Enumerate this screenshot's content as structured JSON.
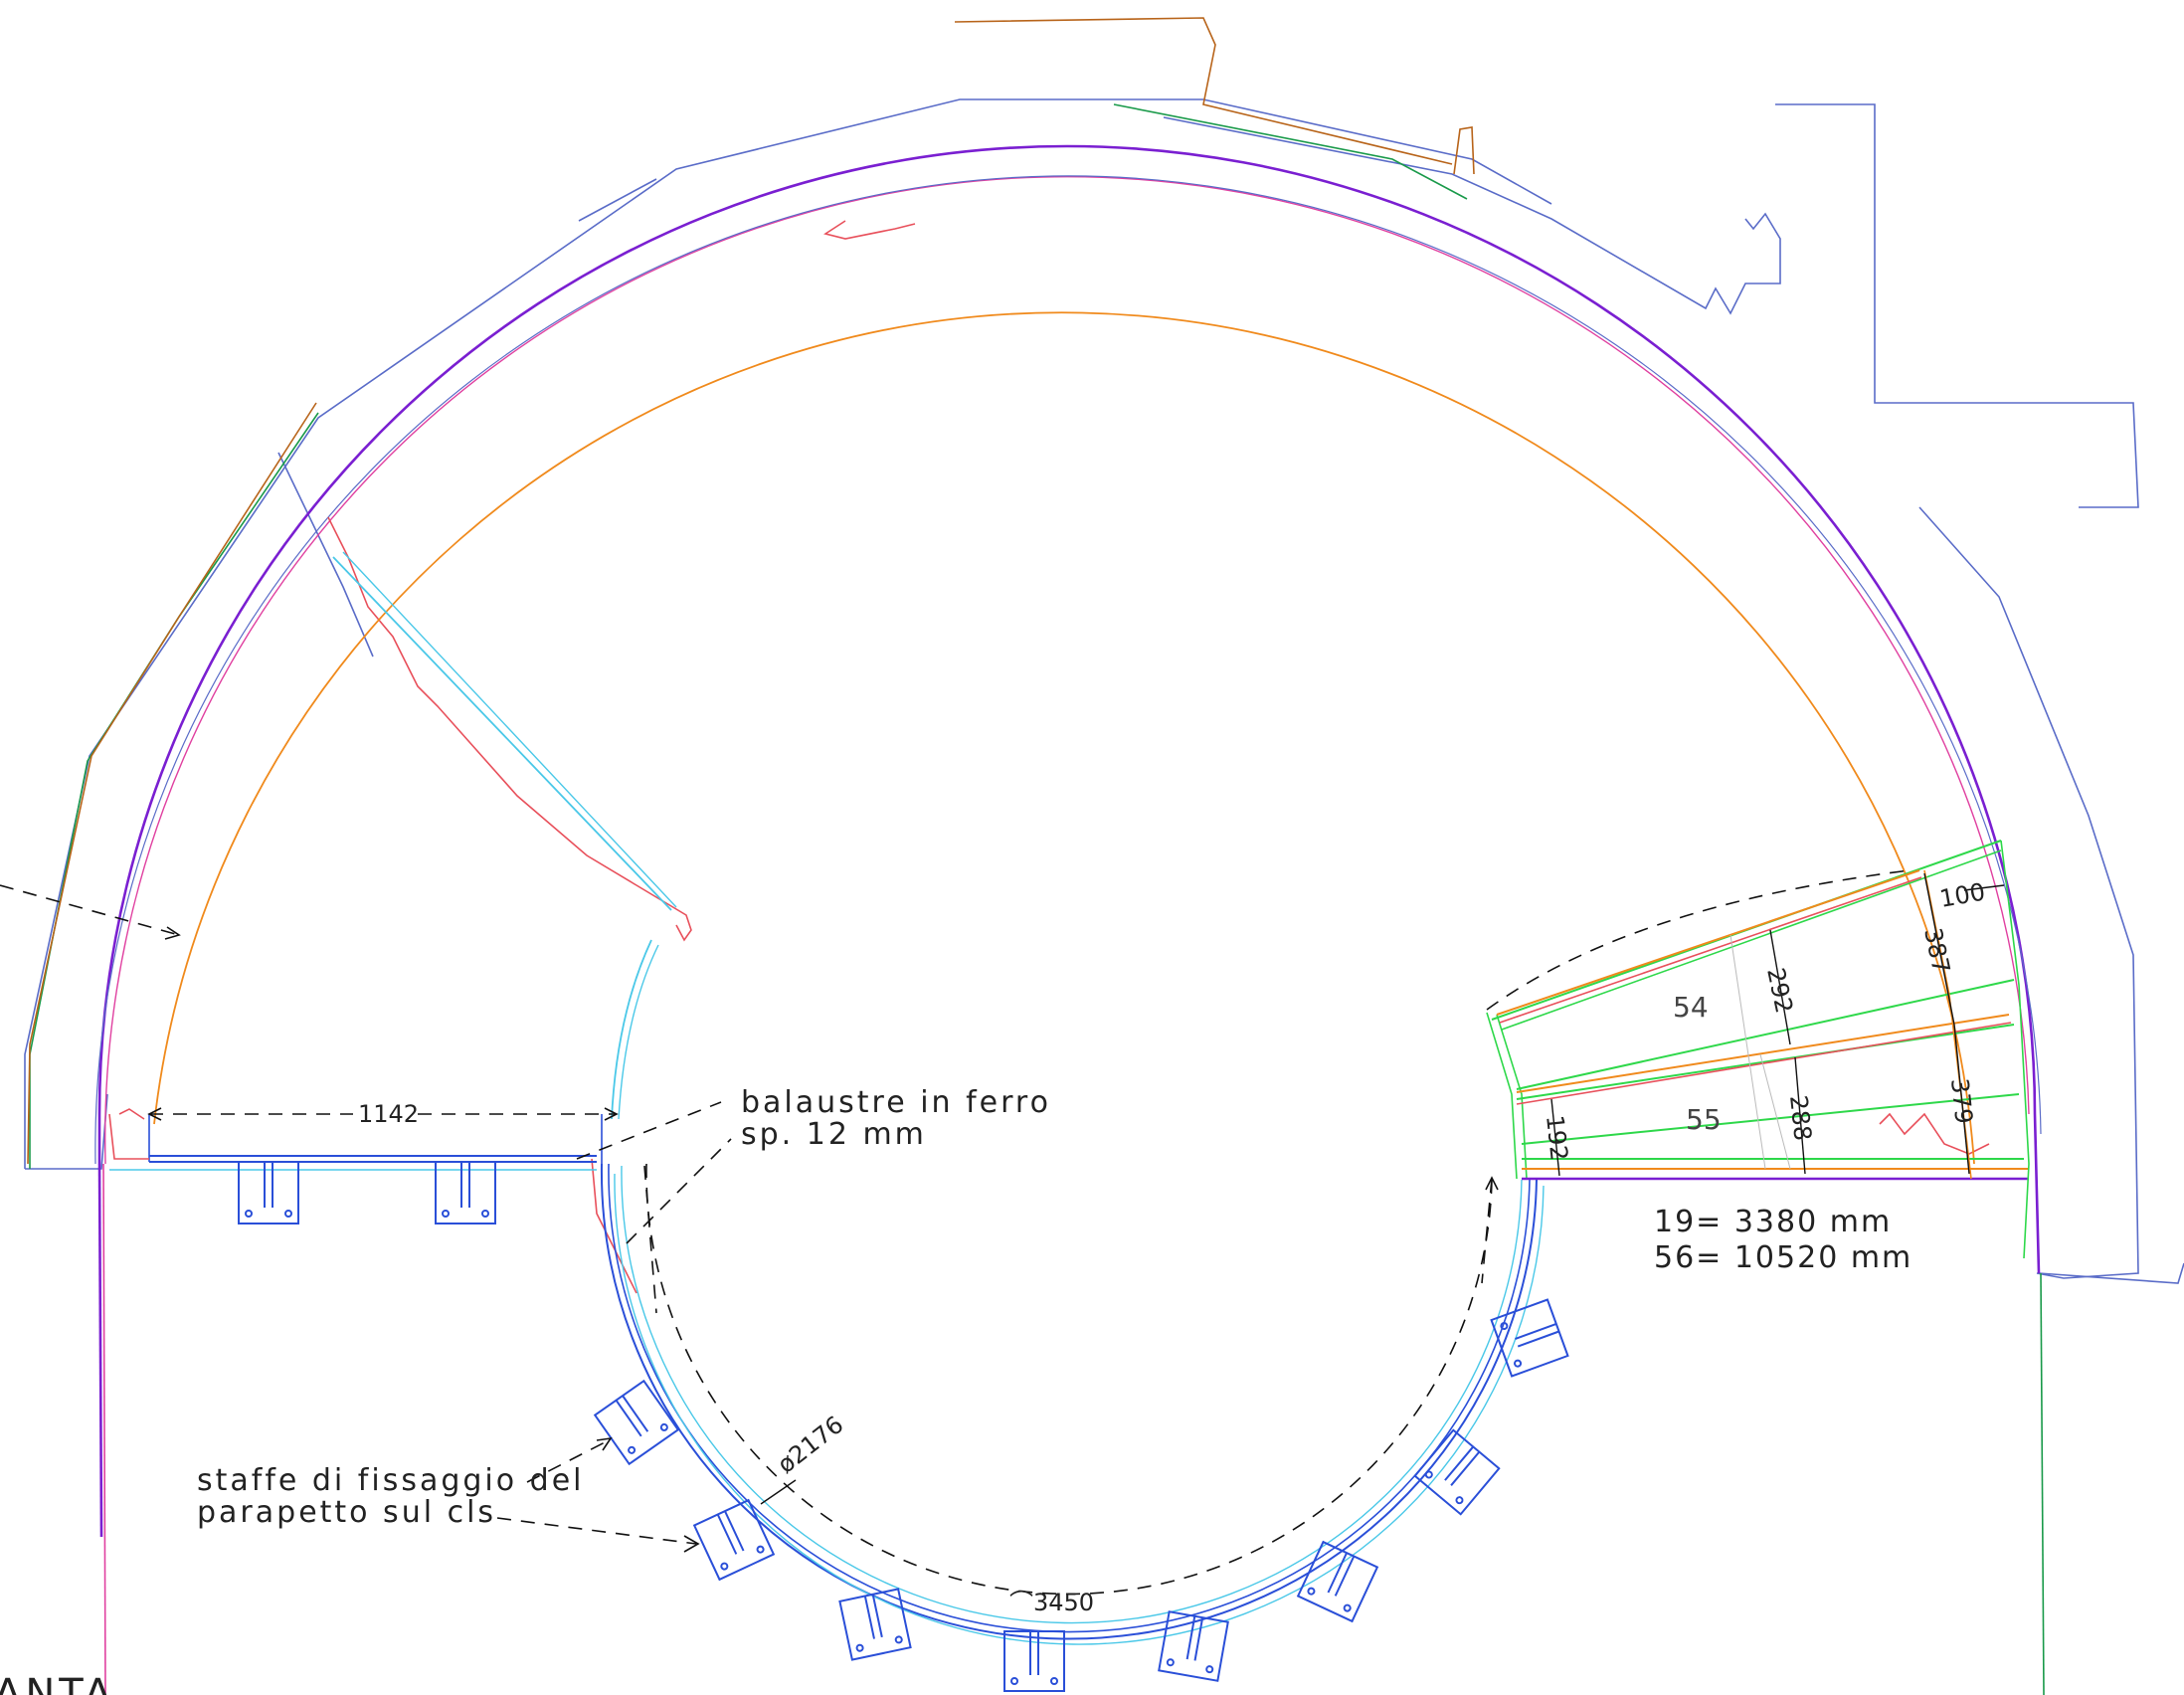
{
  "drawing": {
    "title_fragment": "ANTA",
    "label_balaustre_line1": "balaustre in ferro",
    "label_balaustre_line2": "sp. 12 mm",
    "label_staffe_line1": "staffe di fissaggio del",
    "label_staffe_line2": "parapetto sul cls",
    "summary_line1": "19= 3380 mm",
    "summary_line2": "56= 10520 mm"
  },
  "dimensions": {
    "landing_width": "1142",
    "diameter": "ø2176",
    "arc_length": "⌒3450",
    "d100": "100",
    "d387": "387",
    "d379": "379",
    "d292": "292",
    "d288": "288",
    "d192": "192"
  },
  "steps": {
    "step_54": "54",
    "step_55": "55"
  },
  "colors": {
    "outer_wall": "#5a6cc8",
    "inner_wall_purple": "#7a1fd1",
    "orange_arc": "#f08a1c",
    "red_trace": "#e8505b",
    "cyan": "#4ac8e8",
    "blue_rail": "#2a4fd8",
    "green": "#2ed84a",
    "dark_green": "#1a9a4a",
    "brown": "#b8641a",
    "pink": "#e040a0"
  }
}
